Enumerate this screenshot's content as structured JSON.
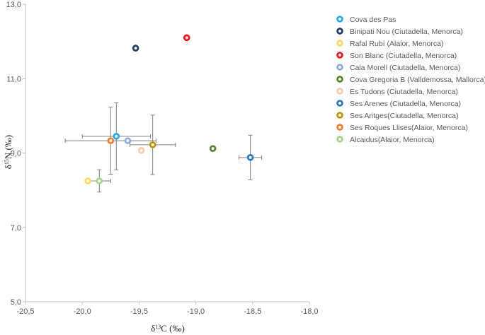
{
  "chart_data": {
    "type": "scatter",
    "title": "",
    "xlabel": "δ13C (‰)",
    "ylabel": "δ15N (‰)",
    "xlim": [
      -20.5,
      -18.0
    ],
    "ylim": [
      5.0,
      13.0
    ],
    "x_ticks": [
      "-20,5",
      "-20,0",
      "-19,5",
      "-19,0",
      "-18,5",
      "-18,0"
    ],
    "y_ticks": [
      "5,0",
      "7,0",
      "9,0",
      "11,0",
      "13,0"
    ],
    "grid": false,
    "legend_position": "right",
    "series": [
      {
        "name": "Cova des Pas",
        "color": "#29A8E0",
        "x": -19.7,
        "y": 9.45,
        "x_err": 0.3,
        "y_err": 0.9
      },
      {
        "name": "Binipati Nou (Ciutadella, Menorca)",
        "color": "#1F3864",
        "x": -19.53,
        "y": 11.82,
        "x_err": null,
        "y_err": null
      },
      {
        "name": "Rafal Rubí (Alaior, Menorca)",
        "color": "#FFD966",
        "x": -19.95,
        "y": 8.25,
        "x_err": null,
        "y_err": null
      },
      {
        "name": "Son Blanc (Ciutadella, Menorca)",
        "color": "#E8141B",
        "x": -19.08,
        "y": 12.1,
        "x_err": null,
        "y_err": null
      },
      {
        "name": "Cala Morell (Ciutadella, Menorca)",
        "color": "#8FAADC",
        "x": -19.6,
        "y": 9.33,
        "x_err": null,
        "y_err": null
      },
      {
        "name": "Cova Gregoria B (Valldemossa, Mallorca)",
        "color": "#548235",
        "x": -18.85,
        "y": 9.12,
        "x_err": null,
        "y_err": null
      },
      {
        "name": "Es Tudons (Ciutadella, Menorca)",
        "color": "#F8CBAD",
        "x": -19.48,
        "y": 9.07,
        "x_err": null,
        "y_err": null
      },
      {
        "name": "Ses Arenes (Ciutadella, Menorca)",
        "color": "#2E75B6",
        "x": -18.52,
        "y": 8.88,
        "x_err": 0.1,
        "y_err": 0.6
      },
      {
        "name": "Ses Aritges(Ciutadella, Menorca)",
        "color": "#BF9000",
        "x": -19.38,
        "y": 9.22,
        "x_err": 0.2,
        "y_err": 0.8
      },
      {
        "name": "Ses Roques Llises(Alaior, Menorca)",
        "color": "#ED7D31",
        "x": -19.75,
        "y": 9.33,
        "x_err": 0.4,
        "y_err": 0.9
      },
      {
        "name": "Alcaidus(Alaior, Menorca)",
        "color": "#A9D18E",
        "x": -19.85,
        "y": 8.25,
        "x_err": 0.1,
        "y_err": 0.3
      }
    ]
  }
}
